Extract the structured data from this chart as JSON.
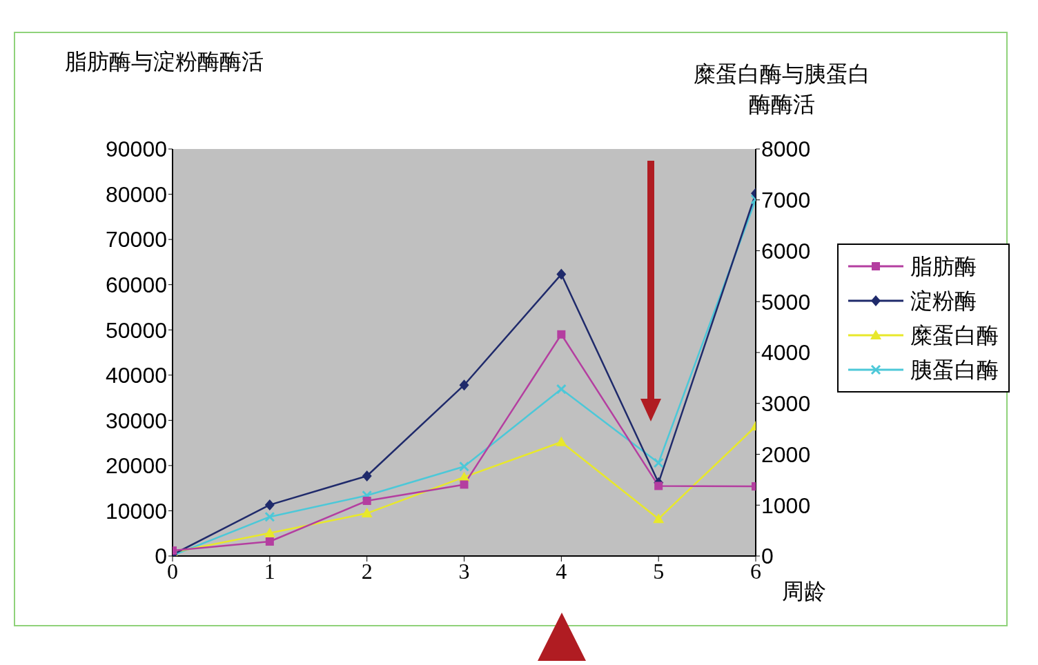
{
  "chart_data": {
    "type": "line",
    "ylabel": "脂肪酶与淀粉酶酶活",
    "y2label": "糜蛋白酶与胰蛋白酶酶活",
    "xlabel": "周龄",
    "x": [
      0,
      1,
      2,
      3,
      4,
      5,
      6
    ],
    "xlim": [
      0,
      6
    ],
    "xticks": [
      0,
      1,
      2,
      3,
      4,
      5,
      6
    ],
    "ylim": [
      0,
      90000
    ],
    "yticks": [
      0,
      10000,
      20000,
      30000,
      40000,
      50000,
      60000,
      70000,
      80000,
      90000
    ],
    "y2lim": [
      0,
      8000
    ],
    "y2ticks": [
      0,
      1000,
      2000,
      3000,
      4000,
      5000,
      6000,
      7000,
      8000
    ],
    "grid": false,
    "legend": "right",
    "series": [
      {
        "name": "脂肪酶",
        "color": "#b43ea0",
        "marker": "square",
        "values": [
          1200,
          3200,
          12200,
          15800,
          49000,
          15500,
          15400
        ]
      },
      {
        "name": "淀粉酶",
        "color": "#1f2a6b",
        "marker": "diamond",
        "values": [
          300,
          11300,
          17700,
          37800,
          62300,
          16200,
          80200
        ]
      },
      {
        "name": "糜蛋白酶",
        "color": "#e8e82a",
        "marker": "triangle",
        "axis": "y2",
        "values": [
          70,
          450,
          840,
          1550,
          2240,
          730,
          2550
        ]
      },
      {
        "name": "胰蛋白酶",
        "color": "#4cc8d8",
        "marker": "cross",
        "axis": "y2",
        "values": [
          10,
          770,
          1190,
          1760,
          3280,
          1830,
          7010
        ]
      }
    ]
  }
}
